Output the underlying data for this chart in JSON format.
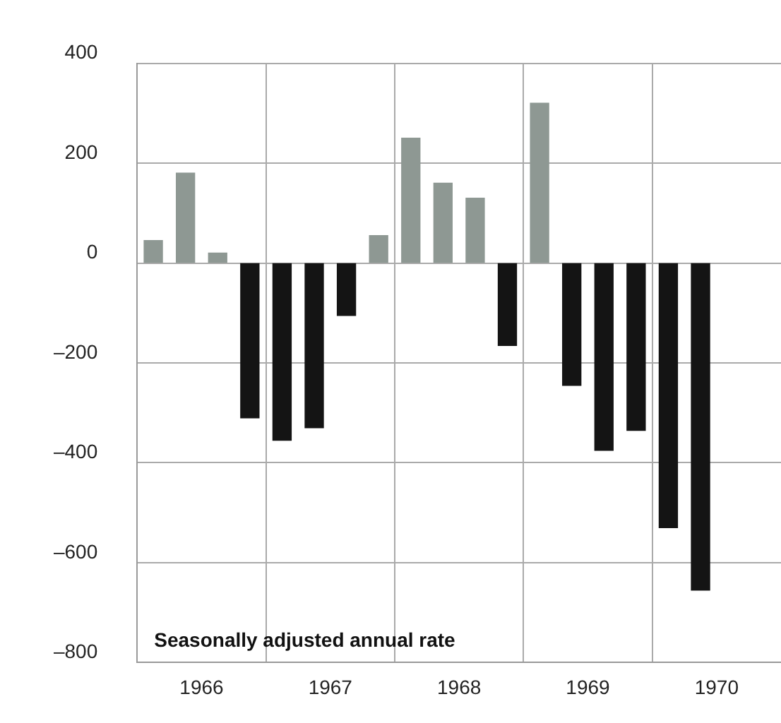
{
  "chart_data": {
    "type": "bar",
    "x": [
      1966.125,
      1966.375,
      1966.625,
      1966.875,
      1967.125,
      1967.375,
      1967.625,
      1967.875,
      1968.125,
      1968.375,
      1968.625,
      1968.875,
      1969.125,
      1969.375,
      1969.625,
      1969.875,
      1970.125,
      1970.375
    ],
    "values": [
      45,
      180,
      20,
      -310,
      -355,
      -330,
      -105,
      55,
      250,
      160,
      130,
      -165,
      320,
      -245,
      -375,
      -335,
      -530,
      -655
    ],
    "colors": [
      "#8e9893",
      "#8e9893",
      "#8e9893",
      "#141414",
      "#141414",
      "#141414",
      "#141414",
      "#8e9893",
      "#8e9893",
      "#8e9893",
      "#8e9893",
      "#141414",
      "#8e9893",
      "#141414",
      "#141414",
      "#141414",
      "#141414",
      "#141414"
    ],
    "xlim": [
      1966,
      1971
    ],
    "xticks": [
      {
        "value": 1966.5,
        "label": "1966"
      },
      {
        "value": 1967,
        "label": null
      },
      {
        "value": 1967.5,
        "label": "1967"
      },
      {
        "value": 1968,
        "label": null
      },
      {
        "value": 1968.5,
        "label": "1968"
      },
      {
        "value": 1969,
        "label": null
      },
      {
        "value": 1969.5,
        "label": "1969"
      },
      {
        "value": 1970,
        "label": null
      },
      {
        "value": 1970.5,
        "label": "1970"
      }
    ],
    "ylim": [
      -800,
      400
    ],
    "yticks": [
      {
        "value": 400,
        "label": "400"
      },
      {
        "value": 200,
        "label": "200"
      },
      {
        "value": 0,
        "label": "0"
      },
      {
        "value": -200,
        "label": "–200"
      },
      {
        "value": -400,
        "label": "–400"
      },
      {
        "value": -600,
        "label": "–600"
      },
      {
        "value": -800,
        "label": "–800"
      }
    ],
    "grid": true,
    "annotations": [
      "Seasonally adjusted annual rate"
    ]
  }
}
